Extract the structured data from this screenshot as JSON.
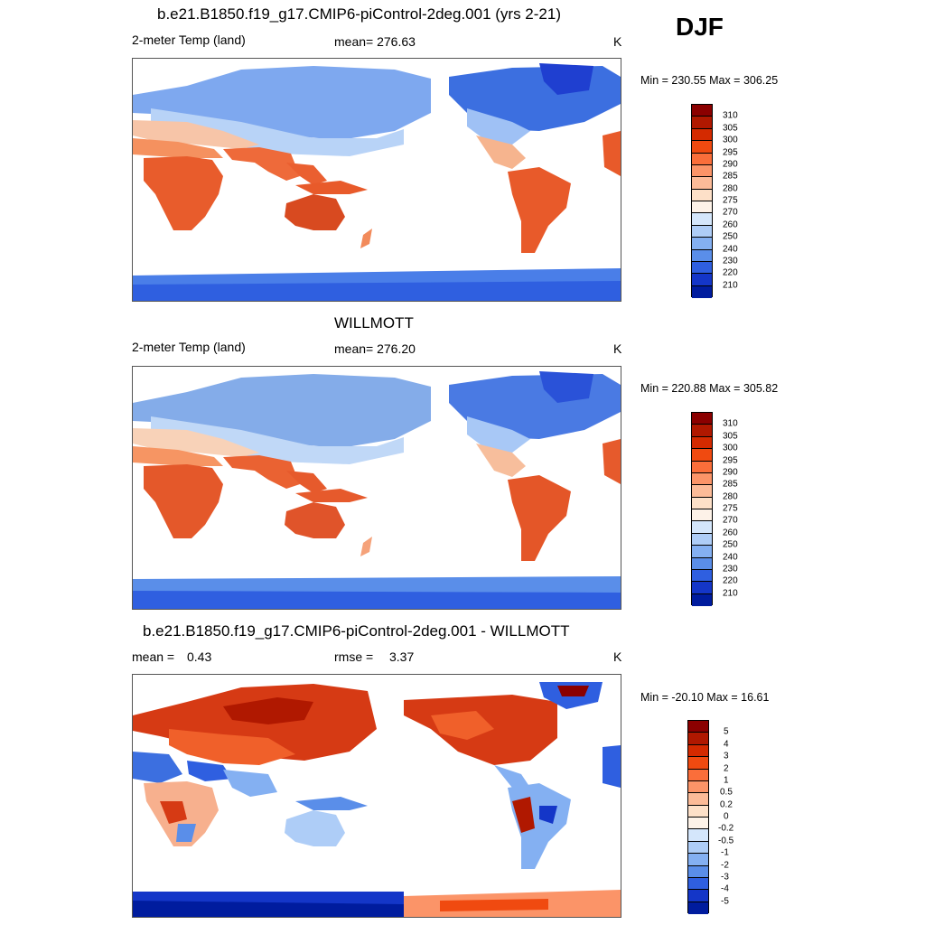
{
  "season": "DJF",
  "panel1": {
    "title": "b.e21.B1850.f19_g17.CMIP6-piControl-2deg.001 (yrs 2-21)",
    "variable": "2-meter Temp (land)",
    "stat": "mean= 276.63",
    "units": "K",
    "minmax": "Min = 230.55 Max = 306.25"
  },
  "panel2": {
    "title": "WILLMOTT",
    "variable": "2-meter Temp (land)",
    "stat": "mean= 276.20",
    "units": "K",
    "minmax": "Min = 220.88 Max = 305.82"
  },
  "panel3": {
    "title": "b.e21.B1850.f19_g17.CMIP6-piControl-2deg.001 - WILLMOTT",
    "mean_label": "mean =",
    "mean_value": "0.43",
    "rmse_label": "rmse =",
    "rmse_value": "3.37",
    "units": "K",
    "minmax": "Min = -20.10 Max =  16.61"
  },
  "temp_colorbar": {
    "labels": [
      "310",
      "305",
      "300",
      "295",
      "290",
      "285",
      "280",
      "275",
      "270",
      "260",
      "250",
      "240",
      "230",
      "220",
      "210"
    ],
    "colors": [
      "#8b0000",
      "#b01800",
      "#d42a00",
      "#f04a10",
      "#fa6e3a",
      "#fb9468",
      "#fcbb98",
      "#fde0c8",
      "#fdf2e8",
      "#d4e6fb",
      "#aecdf7",
      "#84b0f2",
      "#5a8ee9",
      "#2f5fe0",
      "#1436c8",
      "#001c9e"
    ]
  },
  "diff_colorbar": {
    "labels": [
      "5",
      "4",
      "3",
      "2",
      "1",
      "0.5",
      "0.2",
      "0",
      "-0.2",
      "-0.5",
      "-1",
      "-2",
      "-3",
      "-4",
      "-5"
    ],
    "colors": [
      "#8b0000",
      "#b01800",
      "#d42a00",
      "#f04a10",
      "#fa6e3a",
      "#fb9468",
      "#fcbb98",
      "#fde0c8",
      "#fdf2e8",
      "#d4e6fb",
      "#aecdf7",
      "#84b0f2",
      "#5a8ee9",
      "#2f5fe0",
      "#1436c8",
      "#001c9e"
    ]
  }
}
